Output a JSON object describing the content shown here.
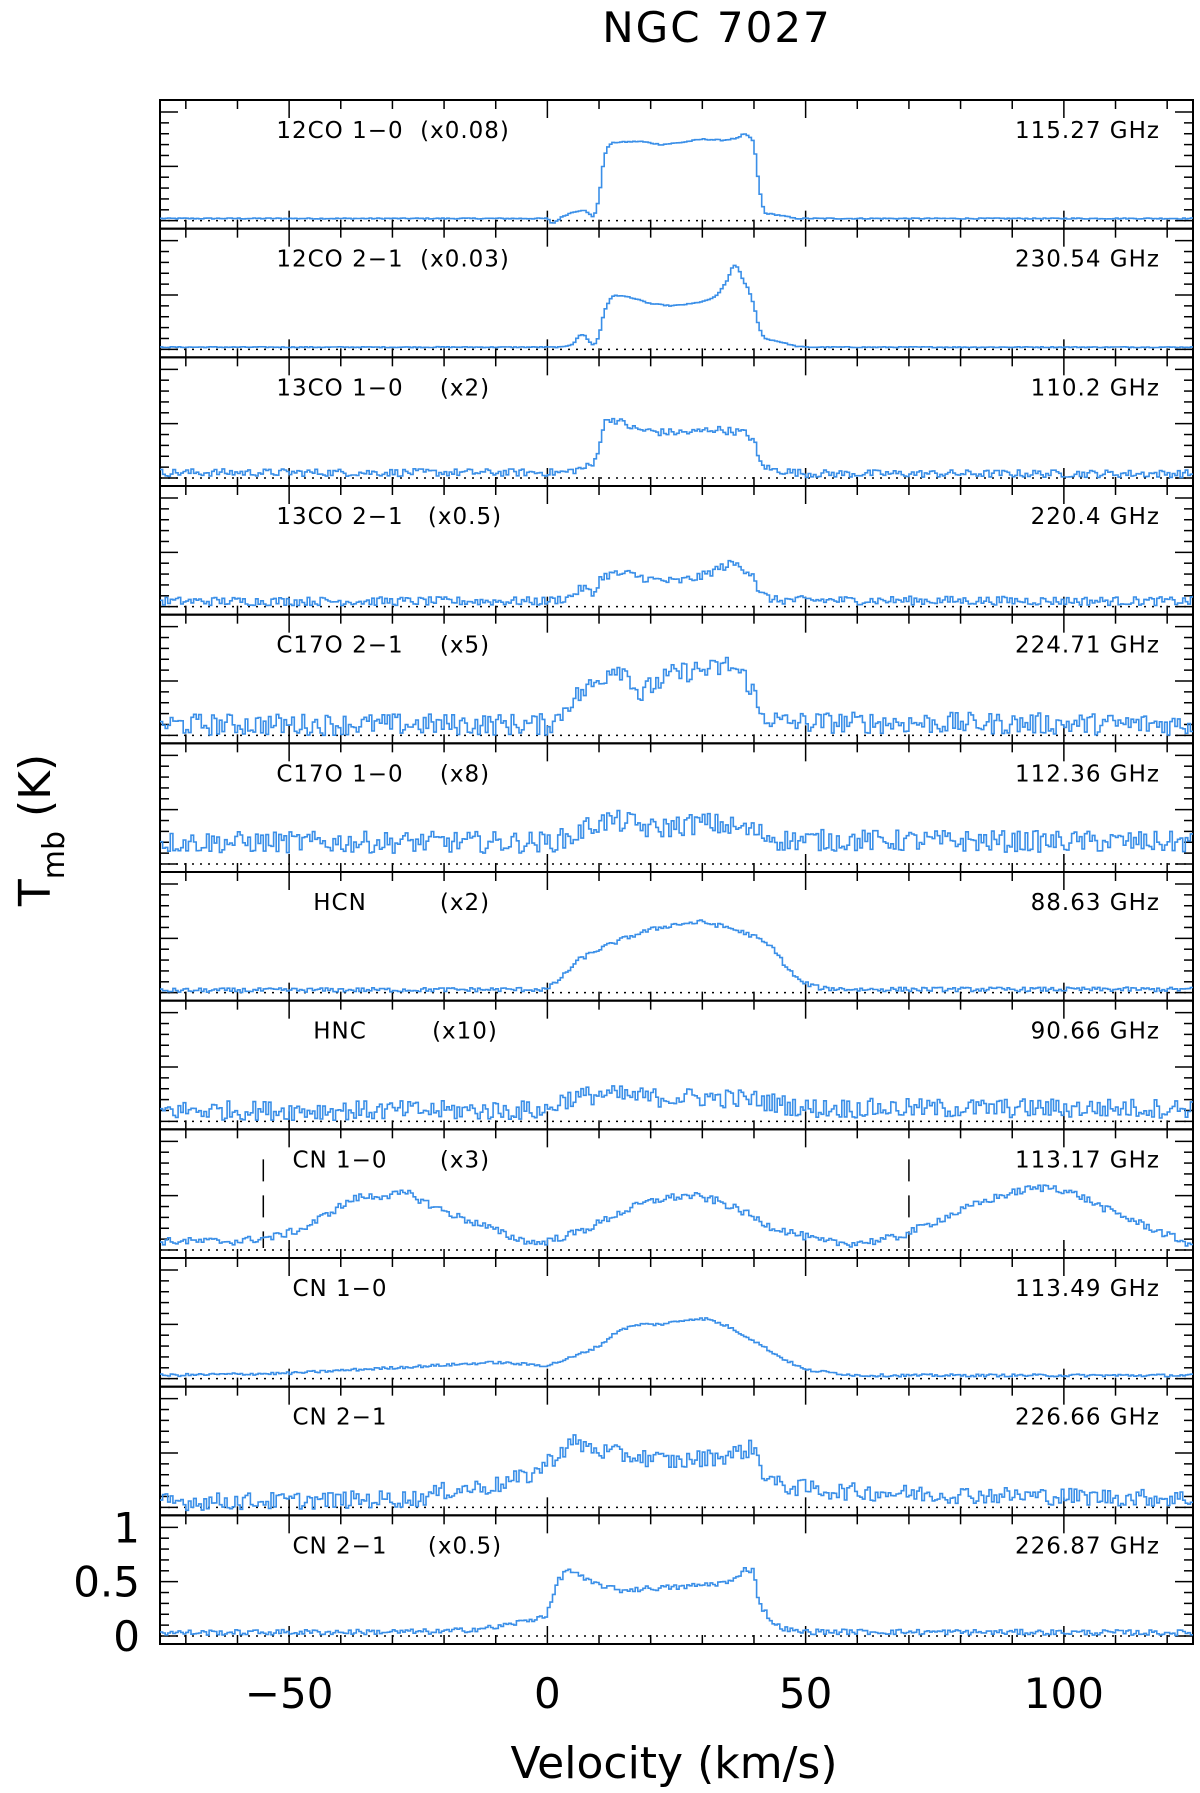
{
  "title": "NGC 7027",
  "chart_data": {
    "type": "line",
    "title": "NGC 7027",
    "xlabel": "Velocity (km/s)",
    "ylabel_main": "T",
    "ylabel_sub": "mb",
    "ylabel_unit": "(K)",
    "xlim": [
      -75,
      125
    ],
    "x_ticks": [
      -50,
      0,
      50,
      100
    ],
    "x_tick_labels": [
      "−50",
      "0",
      "50",
      "100"
    ],
    "y_ticks": [
      0,
      0.5,
      1
    ],
    "y_tick_labels": [
      "0",
      "0.5",
      "1"
    ],
    "ylim": [
      -0.05,
      1.05
    ],
    "line_color": "#3a8fe8",
    "panels": [
      {
        "label": "12CO 1−0",
        "scale": "(x0.08)",
        "freq": "115.27 GHz",
        "points": [
          [
            -75,
            0.02
          ],
          [
            0,
            0.02
          ],
          [
            1,
            -0.03
          ],
          [
            3,
            0.04
          ],
          [
            5,
            0.08
          ],
          [
            7,
            0.1
          ],
          [
            9,
            0.03
          ],
          [
            10,
            0.2
          ],
          [
            11,
            0.6
          ],
          [
            12,
            0.7
          ],
          [
            13,
            0.72
          ],
          [
            18,
            0.73
          ],
          [
            22,
            0.7
          ],
          [
            26,
            0.72
          ],
          [
            30,
            0.75
          ],
          [
            34,
            0.74
          ],
          [
            37,
            0.76
          ],
          [
            38,
            0.8
          ],
          [
            39,
            0.78
          ],
          [
            40,
            0.72
          ],
          [
            41,
            0.3
          ],
          [
            42,
            0.07
          ],
          [
            45,
            0.05
          ],
          [
            48,
            0.02
          ],
          [
            125,
            0.02
          ]
        ],
        "noise": 0.005
      },
      {
        "label": "12CO 2−1",
        "scale": "(x0.03)",
        "freq": "230.54 GHz",
        "points": [
          [
            -75,
            0.02
          ],
          [
            3,
            0.02
          ],
          [
            5,
            0.05
          ],
          [
            6,
            0.12
          ],
          [
            7,
            0.14
          ],
          [
            8,
            0.08
          ],
          [
            9,
            0.03
          ],
          [
            10,
            0.12
          ],
          [
            11,
            0.35
          ],
          [
            12,
            0.45
          ],
          [
            13,
            0.5
          ],
          [
            16,
            0.48
          ],
          [
            20,
            0.42
          ],
          [
            24,
            0.4
          ],
          [
            28,
            0.42
          ],
          [
            31,
            0.45
          ],
          [
            33,
            0.5
          ],
          [
            35,
            0.65
          ],
          [
            36,
            0.78
          ],
          [
            37,
            0.75
          ],
          [
            38,
            0.62
          ],
          [
            39,
            0.55
          ],
          [
            40,
            0.4
          ],
          [
            41,
            0.2
          ],
          [
            42,
            0.1
          ],
          [
            45,
            0.07
          ],
          [
            48,
            0.03
          ],
          [
            50,
            0.02
          ],
          [
            125,
            0.02
          ]
        ],
        "noise": 0.004
      },
      {
        "label": "13CO 1−0",
        "scale": "(x2)",
        "freq": "110.2 GHz",
        "points": [
          [
            -75,
            0.05
          ],
          [
            0,
            0.05
          ],
          [
            3,
            0.05
          ],
          [
            6,
            0.08
          ],
          [
            9,
            0.12
          ],
          [
            10,
            0.3
          ],
          [
            11,
            0.5
          ],
          [
            12,
            0.55
          ],
          [
            14,
            0.52
          ],
          [
            17,
            0.45
          ],
          [
            22,
            0.42
          ],
          [
            28,
            0.42
          ],
          [
            32,
            0.45
          ],
          [
            38,
            0.42
          ],
          [
            40,
            0.35
          ],
          [
            41,
            0.15
          ],
          [
            43,
            0.08
          ],
          [
            50,
            0.04
          ],
          [
            125,
            0.04
          ]
        ],
        "noise": 0.035
      },
      {
        "label": "13CO 2−1",
        "scale": "(x0.5)",
        "freq": "220.4 GHz",
        "points": [
          [
            -75,
            0.05
          ],
          [
            0,
            0.05
          ],
          [
            4,
            0.08
          ],
          [
            7,
            0.18
          ],
          [
            9,
            0.1
          ],
          [
            10,
            0.25
          ],
          [
            12,
            0.3
          ],
          [
            16,
            0.3
          ],
          [
            20,
            0.25
          ],
          [
            25,
            0.23
          ],
          [
            30,
            0.28
          ],
          [
            33,
            0.35
          ],
          [
            36,
            0.4
          ],
          [
            38,
            0.35
          ],
          [
            40,
            0.3
          ],
          [
            41,
            0.12
          ],
          [
            44,
            0.06
          ],
          [
            125,
            0.05
          ]
        ],
        "noise": 0.04
      },
      {
        "label": "C17O 2−1",
        "scale": "(x5)",
        "freq": "224.71 GHz",
        "points": [
          [
            -75,
            0.1
          ],
          [
            0,
            0.1
          ],
          [
            2,
            0.15
          ],
          [
            4,
            0.3
          ],
          [
            7,
            0.4
          ],
          [
            10,
            0.5
          ],
          [
            13,
            0.65
          ],
          [
            16,
            0.55
          ],
          [
            18,
            0.35
          ],
          [
            20,
            0.45
          ],
          [
            24,
            0.55
          ],
          [
            28,
            0.6
          ],
          [
            32,
            0.6
          ],
          [
            35,
            0.65
          ],
          [
            38,
            0.55
          ],
          [
            40,
            0.4
          ],
          [
            41,
            0.2
          ],
          [
            45,
            0.12
          ],
          [
            125,
            0.1
          ]
        ],
        "noise": 0.1
      },
      {
        "label": "C17O 1−0",
        "scale": "(x8)",
        "freq": "112.36 GHz",
        "points": [
          [
            -75,
            0.2
          ],
          [
            0,
            0.2
          ],
          [
            5,
            0.25
          ],
          [
            8,
            0.35
          ],
          [
            12,
            0.4
          ],
          [
            16,
            0.38
          ],
          [
            20,
            0.32
          ],
          [
            25,
            0.35
          ],
          [
            30,
            0.38
          ],
          [
            35,
            0.35
          ],
          [
            40,
            0.3
          ],
          [
            45,
            0.22
          ],
          [
            125,
            0.2
          ]
        ],
        "noise": 0.1
      },
      {
        "label": "HCN",
        "scale": "(x2)",
        "freq": "88.63 GHz",
        "points": [
          [
            -75,
            0.02
          ],
          [
            0,
            0.03
          ],
          [
            3,
            0.15
          ],
          [
            6,
            0.3
          ],
          [
            10,
            0.4
          ],
          [
            15,
            0.5
          ],
          [
            20,
            0.58
          ],
          [
            25,
            0.63
          ],
          [
            30,
            0.65
          ],
          [
            35,
            0.6
          ],
          [
            40,
            0.52
          ],
          [
            44,
            0.4
          ],
          [
            46,
            0.25
          ],
          [
            49,
            0.1
          ],
          [
            53,
            0.04
          ],
          [
            60,
            0.03
          ],
          [
            125,
            0.03
          ]
        ],
        "noise": 0.02
      },
      {
        "label": "HNC",
        "scale": "(x10)",
        "freq": "90.66 GHz",
        "points": [
          [
            -75,
            0.1
          ],
          [
            0,
            0.1
          ],
          [
            3,
            0.2
          ],
          [
            10,
            0.25
          ],
          [
            20,
            0.22
          ],
          [
            30,
            0.22
          ],
          [
            40,
            0.2
          ],
          [
            50,
            0.12
          ],
          [
            125,
            0.12
          ]
        ],
        "noise": 0.09
      },
      {
        "label": "CN 1−0",
        "scale": "(x3)",
        "freq": "113.17 GHz",
        "points": [
          [
            -75,
            0.08
          ],
          [
            -60,
            0.08
          ],
          [
            -53,
            0.12
          ],
          [
            -47,
            0.2
          ],
          [
            -42,
            0.35
          ],
          [
            -37,
            0.48
          ],
          [
            -32,
            0.5
          ],
          [
            -27,
            0.52
          ],
          [
            -22,
            0.4
          ],
          [
            -17,
            0.3
          ],
          [
            -12,
            0.22
          ],
          [
            -7,
            0.12
          ],
          [
            -2,
            0.06
          ],
          [
            3,
            0.12
          ],
          [
            8,
            0.2
          ],
          [
            13,
            0.32
          ],
          [
            18,
            0.42
          ],
          [
            23,
            0.48
          ],
          [
            28,
            0.5
          ],
          [
            33,
            0.45
          ],
          [
            38,
            0.35
          ],
          [
            43,
            0.22
          ],
          [
            48,
            0.15
          ],
          [
            53,
            0.08
          ],
          [
            58,
            0.06
          ],
          [
            63,
            0.08
          ],
          [
            68,
            0.12
          ],
          [
            73,
            0.22
          ],
          [
            78,
            0.32
          ],
          [
            83,
            0.42
          ],
          [
            88,
            0.5
          ],
          [
            93,
            0.56
          ],
          [
            98,
            0.58
          ],
          [
            103,
            0.5
          ],
          [
            108,
            0.38
          ],
          [
            113,
            0.28
          ],
          [
            118,
            0.18
          ],
          [
            123,
            0.08
          ],
          [
            125,
            0.05
          ]
        ],
        "noise": 0.035,
        "dashes": [
          -55,
          70
        ]
      },
      {
        "label": "CN 1−0",
        "scale": "",
        "freq": "113.49 GHz",
        "points": [
          [
            -75,
            0.03
          ],
          [
            -50,
            0.05
          ],
          [
            -30,
            0.1
          ],
          [
            -10,
            0.15
          ],
          [
            0,
            0.12
          ],
          [
            5,
            0.2
          ],
          [
            10,
            0.3
          ],
          [
            14,
            0.45
          ],
          [
            18,
            0.5
          ],
          [
            22,
            0.5
          ],
          [
            28,
            0.55
          ],
          [
            31,
            0.55
          ],
          [
            35,
            0.48
          ],
          [
            40,
            0.35
          ],
          [
            45,
            0.2
          ],
          [
            50,
            0.08
          ],
          [
            60,
            0.03
          ],
          [
            125,
            0.03
          ]
        ],
        "noise": 0.012
      },
      {
        "label": "CN 2−1",
        "scale": "",
        "freq": "226.66 GHz",
        "points": [
          [
            -75,
            0.05
          ],
          [
            -50,
            0.06
          ],
          [
            -25,
            0.08
          ],
          [
            -20,
            0.15
          ],
          [
            -10,
            0.2
          ],
          [
            -3,
            0.3
          ],
          [
            1,
            0.45
          ],
          [
            5,
            0.6
          ],
          [
            10,
            0.52
          ],
          [
            15,
            0.48
          ],
          [
            20,
            0.45
          ],
          [
            25,
            0.42
          ],
          [
            30,
            0.45
          ],
          [
            35,
            0.48
          ],
          [
            40,
            0.55
          ],
          [
            42,
            0.3
          ],
          [
            45,
            0.2
          ],
          [
            55,
            0.15
          ],
          [
            75,
            0.12
          ],
          [
            100,
            0.1
          ],
          [
            125,
            0.08
          ]
        ],
        "noise": 0.08
      },
      {
        "label": "CN 2−1",
        "scale": "(x0.5)",
        "freq": "226.87 GHz",
        "points": [
          [
            -75,
            0.03
          ],
          [
            -20,
            0.04
          ],
          [
            -10,
            0.08
          ],
          [
            -3,
            0.15
          ],
          [
            0,
            0.2
          ],
          [
            2,
            0.5
          ],
          [
            4,
            0.62
          ],
          [
            8,
            0.5
          ],
          [
            14,
            0.42
          ],
          [
            20,
            0.44
          ],
          [
            26,
            0.45
          ],
          [
            32,
            0.48
          ],
          [
            36,
            0.5
          ],
          [
            38,
            0.62
          ],
          [
            40,
            0.6
          ],
          [
            41,
            0.3
          ],
          [
            44,
            0.1
          ],
          [
            48,
            0.04
          ],
          [
            125,
            0.03
          ]
        ],
        "noise": 0.025
      }
    ]
  }
}
